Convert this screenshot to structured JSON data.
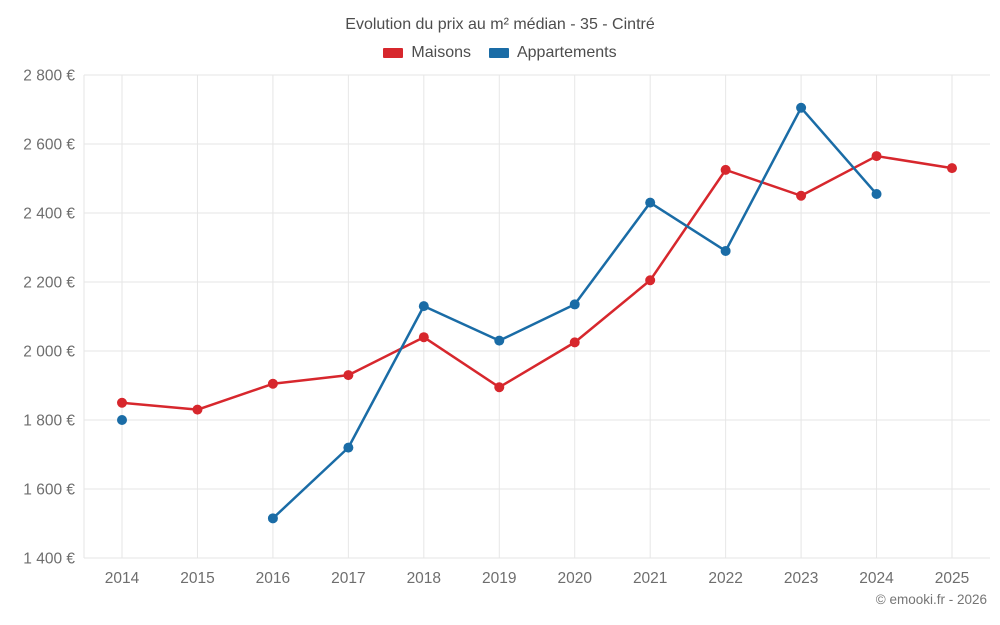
{
  "title": "Evolution du prix au m² médian - 35 - Cintré",
  "watermark": "© emooki.fr - 2026",
  "colors": {
    "maisons": "#d7272d",
    "appartements": "#1a6ca6",
    "grid": "#e6e6e6",
    "tick_text": "#6e6e6e"
  },
  "chart_data": {
    "type": "line",
    "title": "Evolution du prix au m² médian - 35 - Cintré",
    "x": [
      2014,
      2015,
      2016,
      2017,
      2018,
      2019,
      2020,
      2021,
      2022,
      2023,
      2024,
      2025
    ],
    "x_tick_labels": [
      "2014",
      "2015",
      "2016",
      "2017",
      "2018",
      "2019",
      "2020",
      "2021",
      "2022",
      "2023",
      "2024",
      "2025"
    ],
    "series": [
      {
        "name": "Maisons",
        "color": "#d7272d",
        "values": [
          1850,
          1830,
          1905,
          1930,
          2040,
          1895,
          2025,
          2205,
          2525,
          2450,
          2565,
          2530
        ]
      },
      {
        "name": "Appartements",
        "color": "#1a6ca6",
        "values": [
          1800,
          null,
          1515,
          1720,
          2130,
          2030,
          2135,
          2430,
          2290,
          2705,
          2455,
          null
        ]
      }
    ],
    "xlabel": "",
    "ylabel": "",
    "ylim": [
      1400,
      2800
    ],
    "y_ticks": [
      1400,
      1600,
      1800,
      2000,
      2200,
      2400,
      2600,
      2800
    ],
    "y_tick_labels": [
      "1 400 €",
      "1 600 €",
      "1 800 €",
      "2 000 €",
      "2 200 €",
      "2 400 €",
      "2 600 €",
      "2 800 €"
    ],
    "grid": true,
    "legend_position": "top",
    "marker_radius": 5,
    "line_width": 2.5
  }
}
